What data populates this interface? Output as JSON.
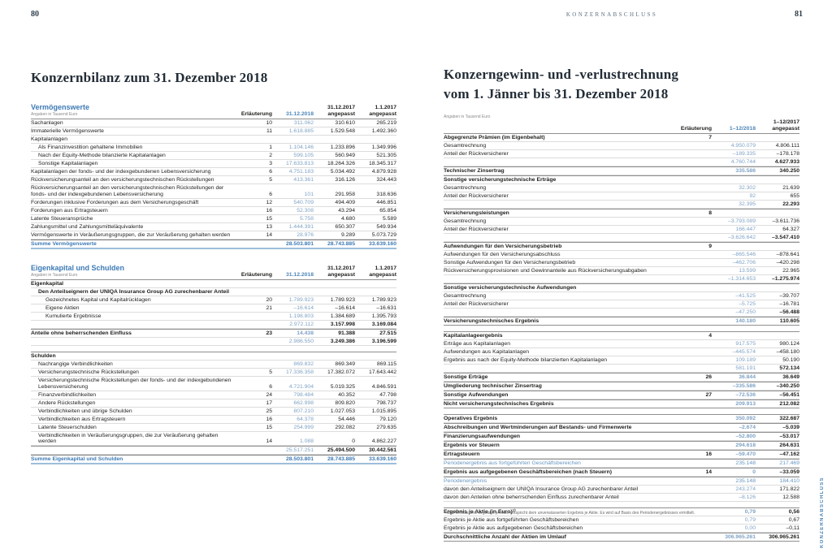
{
  "document": {
    "unit_note": "Angaben in Tausend Euro",
    "accent_blue": "#3d7ab5",
    "value_blue": "#7fa2c5"
  },
  "left": {
    "page_number": "80",
    "title": "Konzernbilanz zum 31. Dezember 2018",
    "assets_table": {
      "title": "Vermögenswerte",
      "unit_note": "Angaben in Tausend Euro",
      "columns": {
        "note": "Erläuterung",
        "values": [
          {
            "label": "31.12.2018"
          },
          {
            "label": "31.12.2017",
            "sub": "angepasst"
          },
          {
            "label": "1.1.2017",
            "sub": "angepasst"
          }
        ]
      },
      "rows": [
        {
          "label": "Sachanlagen",
          "note": "10",
          "values": [
            "311.062",
            "310.610",
            "265.219"
          ]
        },
        {
          "label": "Immaterielle Vermögenswerte",
          "note": "11",
          "values": [
            "1.618.885",
            "1.529.548",
            "1.492.360"
          ]
        },
        {
          "label": "Kapitalanlagen"
        },
        {
          "label": "Als Finanzinvestition gehaltene Immobilien",
          "indent": 1,
          "note": "1",
          "values": [
            "1.104.146",
            "1.233.896",
            "1.349.996"
          ]
        },
        {
          "label": "Nach der Equity-Methode bilanzierte Kapitalanlagen",
          "indent": 1,
          "note": "2",
          "values": [
            "599.105",
            "560.949",
            "521.305"
          ]
        },
        {
          "label": "Sonstige Kapitalanlagen",
          "indent": 1,
          "note": "3",
          "values": [
            "17.633.813",
            "18.264.326",
            "18.345.317"
          ]
        },
        {
          "label": "Kapitalanlagen der fonds- und der indexgebundenen Lebensversicherung",
          "note": "6",
          "values": [
            "4.751.183",
            "5.034.492",
            "4.879.928"
          ]
        },
        {
          "label": "Rückversicherungsanteil an den versicherungstechnischen Rückstellungen",
          "note": "5",
          "values": [
            "413.361",
            "316.126",
            "324.443"
          ]
        },
        {
          "label": "Rückversicherungsanteil an den versicherungstechnischen Rückstellungen der fonds- und der indexgebundenen Lebensversicherung",
          "note": "6",
          "values": [
            "101",
            "291.958",
            "318.636"
          ]
        },
        {
          "label": "Forderungen inklusive Forderungen aus dem Versicherungsgeschäft",
          "note": "12",
          "values": [
            "540.709",
            "494.409",
            "446.851"
          ]
        },
        {
          "label": "Forderungen aus Ertragsteuern",
          "note": "16",
          "values": [
            "52.308",
            "43.294",
            "65.854"
          ]
        },
        {
          "label": "Latente Steueransprüche",
          "note": "15",
          "values": [
            "5.758",
            "4.680",
            "5.589"
          ]
        },
        {
          "label": "Zahlungsmittel und Zahlungsmitteläquivalente",
          "note": "13",
          "values": [
            "1.444.391",
            "650.307",
            "549.934"
          ]
        },
        {
          "label": "Vermögenswerte in Veräußerungsgruppen, die zur Veräußerung gehalten werden",
          "note": "14",
          "values": [
            "28.976",
            "9.289",
            "5.073.729"
          ]
        },
        {
          "label": "Summe Vermögenswerte",
          "cls": "sum",
          "values": [
            "28.503.801",
            "28.743.885",
            "33.639.160"
          ]
        }
      ]
    },
    "equity_table": {
      "title": "Eigenkapital und Schulden",
      "unit_note": "Angaben in Tausend Euro",
      "columns": {
        "note": "Erläuterung",
        "values": [
          {
            "label": "31.12.2018"
          },
          {
            "label": "31.12.2017",
            "sub": "angepasst"
          },
          {
            "label": "1.1.2017",
            "sub": "angepasst"
          }
        ]
      },
      "rows": [
        {
          "label": "Eigenkapital",
          "cls": "bold"
        },
        {
          "label": "Den Anteilseignern der UNIQA Insurance Group AG zurechenbarer Anteil",
          "cls": "bold",
          "indent": 1
        },
        {
          "label": "Gezeichnetes Kapital und Kapitalrücklagen",
          "indent": 2,
          "note": "20",
          "values": [
            "1.789.923",
            "1.789.923",
            "1.789.923"
          ]
        },
        {
          "label": "Eigene Aktien",
          "indent": 2,
          "note": "21",
          "values": [
            "–16.614",
            "–16.614",
            "–16.631"
          ]
        },
        {
          "label": "Kumulierte Ergebnisse",
          "indent": 2,
          "values": [
            "1.198.803",
            "1.384.689",
            "1.395.793"
          ]
        },
        {
          "cls": "sub",
          "values": [
            "2.972.112",
            "3.157.998",
            "3.169.084"
          ]
        },
        {
          "label": "Anteile ohne beherrschenden Einfluss",
          "cls": "bold dt",
          "note": "23",
          "values": [
            "14.438",
            "91.388",
            "27.515"
          ]
        },
        {
          "cls": "sub",
          "values": [
            "2.986.550",
            "3.249.386",
            "3.196.599"
          ]
        },
        {
          "cls": "gap"
        },
        {
          "label": "Schulden",
          "cls": "bold dt"
        },
        {
          "label": "Nachrangige Verbindlichkeiten",
          "indent": 1,
          "values": [
            "869.832",
            "869.349",
            "869.115"
          ]
        },
        {
          "label": "Versicherungstechnische Rückstellungen",
          "indent": 1,
          "note": "5",
          "values": [
            "17.336.358",
            "17.382.072",
            "17.643.442"
          ]
        },
        {
          "label": "Versicherungstechnische Rückstellungen der fonds- und der indexgebundenen Lebensversicherung",
          "indent": 1,
          "note": "6",
          "values": [
            "4.721.904",
            "5.019.325",
            "4.846.591"
          ]
        },
        {
          "label": "Finanzverbindlichkeiten",
          "indent": 1,
          "note": "24",
          "values": [
            "798.484",
            "40.352",
            "47.798"
          ]
        },
        {
          "label": "Andere Rückstellungen",
          "indent": 1,
          "note": "17",
          "values": [
            "662.998",
            "809.820",
            "798.737"
          ]
        },
        {
          "label": "Verbindlichkeiten und übrige Schulden",
          "indent": 1,
          "note": "25",
          "values": [
            "807.210",
            "1.027.053",
            "1.015.895"
          ]
        },
        {
          "label": "Verbindlichkeiten aus Ertragsteuern",
          "indent": 1,
          "note": "16",
          "values": [
            "64.378",
            "54.446",
            "79.120"
          ]
        },
        {
          "label": "Latente Steuerschulden",
          "indent": 1,
          "note": "15",
          "values": [
            "254.999",
            "292.082",
            "279.635"
          ]
        },
        {
          "label": "Verbindlichkeiten in Veräußerungsgruppen, die zur Veräußerung gehalten werden",
          "indent": 1,
          "note": "14",
          "values": [
            "1.088",
            "0",
            "4.862.227"
          ]
        },
        {
          "cls": "sub dt",
          "values": [
            "25.517.251",
            "25.494.500",
            "30.442.561"
          ]
        },
        {
          "label": "Summe Eigenkapital und Schulden",
          "cls": "sum",
          "values": [
            "28.503.801",
            "28.743.885",
            "33.639.160"
          ]
        }
      ]
    }
  },
  "right": {
    "running_head": "KONZERNABSCHLUSS",
    "page_number": "81",
    "title_lines": [
      "Konzerngewinn- und -verlustrechnung",
      "vom 1. Jänner bis 31. Dezember 2018"
    ],
    "side_tab": "KONZERNABSCHLUSS",
    "footnote": "¹⁾ Das verwässerte Ergebnis je Aktie entspricht dem unverwässerten Ergebnis je Aktie. Es wird auf Basis des Periodenergebnisses ermittelt.",
    "pl_table": {
      "title": null,
      "unit_note": "Angaben in Tausend Euro",
      "columns": {
        "note": "Erläuterung",
        "values": [
          {
            "label": "1–12/2018"
          },
          {
            "label": "1–12/2017",
            "sub": "angepasst"
          }
        ]
      },
      "rows": [
        {
          "label": "Abgegrenzte Prämien (im Eigenbehalt)",
          "cls": "bold",
          "note": "7"
        },
        {
          "label": "Gesamtrechnung",
          "values": [
            "4.950.079",
            "4.806.111"
          ]
        },
        {
          "label": "Anteil der Rückversicherer",
          "values": [
            "–189.335",
            "–178.178"
          ]
        },
        {
          "cls": "sub",
          "values": [
            "4.760.744",
            "4.627.933"
          ]
        },
        {
          "label": "Technischer Zinsertrag",
          "cls": "bold dt",
          "values": [
            "335.586",
            "340.250"
          ]
        },
        {
          "label": "Sonstige versicherungstechnische Erträge",
          "cls": "bold dt"
        },
        {
          "label": "Gesamtrechnung",
          "values": [
            "32.302",
            "21.639"
          ]
        },
        {
          "label": "Anteil der Rückversicherer",
          "values": [
            "92",
            "655"
          ]
        },
        {
          "cls": "sub",
          "values": [
            "32.395",
            "22.293"
          ]
        },
        {
          "label": "Versicherungsleistungen",
          "cls": "bold dt",
          "note": "8"
        },
        {
          "label": "Gesamtrechnung",
          "values": [
            "–3.793.089",
            "–3.611.736"
          ]
        },
        {
          "label": "Anteil der Rückversicherer",
          "values": [
            "166.447",
            "64.327"
          ]
        },
        {
          "cls": "sub",
          "values": [
            "–3.626.642",
            "–3.547.410"
          ]
        },
        {
          "label": "Aufwendungen für den Versicherungsbetrieb",
          "cls": "bold dt",
          "note": "9"
        },
        {
          "label": "Aufwendungen für den Versicherungsabschluss",
          "values": [
            "–865.546",
            "–878.641"
          ]
        },
        {
          "label": "Sonstige Aufwendungen für den Versicherungsbetrieb",
          "values": [
            "–462.706",
            "–420.298"
          ]
        },
        {
          "label": "Rückversicherungsprovisionen und Gewinnanteile aus Rückversicherungsabgaben",
          "values": [
            "13.599",
            "22.965"
          ]
        },
        {
          "cls": "sub",
          "values": [
            "–1.314.653",
            "–1.275.974"
          ]
        },
        {
          "label": "Sonstige versicherungstechnische Aufwendungen",
          "cls": "bold dt"
        },
        {
          "label": "Gesamtrechnung",
          "values": [
            "–41.525",
            "–39.707"
          ]
        },
        {
          "label": "Anteil der Rückversicherer",
          "values": [
            "–5.725",
            "–16.781"
          ]
        },
        {
          "cls": "sub",
          "values": [
            "–47.250",
            "–56.488"
          ]
        },
        {
          "label": "Versicherungstechnisches Ergebnis",
          "cls": "bold dt db",
          "values": [
            "140.180",
            "110.605"
          ]
        },
        {
          "cls": "gap"
        },
        {
          "label": "Kapitalanlageergebnis",
          "cls": "bold dt",
          "note": "4"
        },
        {
          "label": "Erträge aus Kapitalanlagen",
          "values": [
            "917.575",
            "980.124"
          ]
        },
        {
          "label": "Aufwendungen aus Kapitalanlagen",
          "values": [
            "–445.574",
            "–458.180"
          ]
        },
        {
          "label": "Ergebnis aus nach der Equity-Methode bilanzierten Kapitalanlagen",
          "values": [
            "109.189",
            "50.190"
          ]
        },
        {
          "cls": "sub",
          "values": [
            "581.191",
            "572.134"
          ]
        },
        {
          "label": "Sonstige Erträge",
          "cls": "bold dt",
          "note": "26",
          "values": [
            "36.844",
            "36.649"
          ]
        },
        {
          "label": "Umgliederung technischer Zinsertrag",
          "cls": "bold dt",
          "values": [
            "–335.586",
            "–340.250"
          ]
        },
        {
          "label": "Sonstige Aufwendungen",
          "cls": "bold dt",
          "note": "27",
          "values": [
            "–72.536",
            "–56.451"
          ]
        },
        {
          "label": "Nicht versicherungstechnisches Ergebnis",
          "cls": "bold dt db",
          "values": [
            "209.913",
            "212.082"
          ]
        },
        {
          "cls": "gap"
        },
        {
          "label": "Operatives Ergebnis",
          "cls": "bold dt",
          "values": [
            "350.092",
            "322.687"
          ]
        },
        {
          "label": "Abschreibungen und Wertminderungen auf Bestands- und Firmenwerte",
          "cls": "bold dt",
          "values": [
            "–2.674",
            "–5.039"
          ]
        },
        {
          "label": "Finanzierungsaufwendungen",
          "cls": "bold dt",
          "values": [
            "–52.800",
            "–53.017"
          ]
        },
        {
          "label": "Ergebnis vor Steuern",
          "cls": "bold dt",
          "values": [
            "294.618",
            "264.631"
          ]
        },
        {
          "label": "Ertragsteuern",
          "cls": "bold dt",
          "note": "16",
          "values": [
            "–59.470",
            "–47.162"
          ]
        },
        {
          "label": "Periodenergebnis aus fortgeführten Geschäftsbereichen",
          "cls": "blue dt",
          "values": [
            "235.148",
            "217.469"
          ]
        },
        {
          "label": "Ergebnis aus aufgegebenen Geschäftsbereichen (nach Steuern)",
          "cls": "bold dt",
          "note": "14",
          "values": [
            "0",
            "–33.059"
          ]
        },
        {
          "label": "Periodenergebnis",
          "cls": "blue dt",
          "values": [
            "235.148",
            "184.410"
          ]
        },
        {
          "label": "davon den Anteilseignern der UNIQA Insurance Group AG zurechenbarer Anteil",
          "values": [
            "243.274",
            "171.822"
          ]
        },
        {
          "label": "davon den Anteilen ohne beherrschenden Einfluss zurechenbarer Anteil",
          "values": [
            "–8.126",
            "12.588"
          ]
        },
        {
          "cls": "gap"
        },
        {
          "label": "Ergebnis je Aktie (in Euro)¹⁾",
          "cls": "bold dt",
          "values": [
            "0,79",
            "0,56"
          ]
        },
        {
          "label": "Ergebnis je Aktie aus fortgeführten Geschäftsbereichen",
          "values": [
            "0,79",
            "0,67"
          ]
        },
        {
          "label": "Ergebnis je Aktie aus aufgegebenen Geschäftsbereichen",
          "values": [
            "0,00",
            "–0,11"
          ]
        },
        {
          "label": "Durchschnittliche Anzahl der Aktien im Umlauf",
          "cls": "bold dt db",
          "values": [
            "306.965.261",
            "306.965.261"
          ]
        }
      ]
    }
  }
}
